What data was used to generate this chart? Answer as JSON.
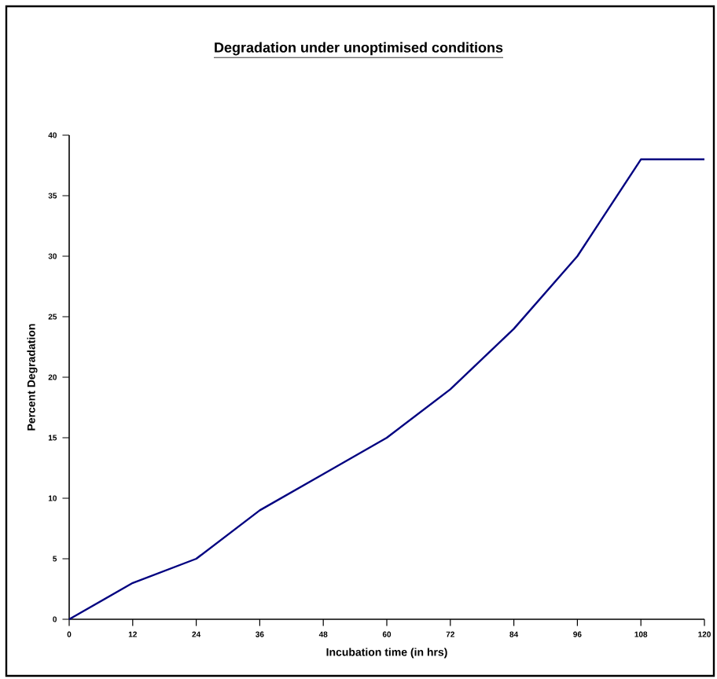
{
  "chart_data": {
    "type": "line",
    "title": "Degradation under unoptimised conditions",
    "xlabel": "Incubation time (in hrs)",
    "ylabel": "Percent Degradation",
    "x": [
      0,
      12,
      24,
      36,
      48,
      60,
      72,
      84,
      96,
      108,
      120
    ],
    "series": [
      {
        "color": "#000080",
        "values": [
          0,
          3,
          5,
          9,
          12,
          15,
          19,
          24,
          30,
          38,
          38
        ]
      }
    ],
    "xlim": [
      0,
      120
    ],
    "xticks": [
      0,
      12,
      24,
      36,
      48,
      60,
      72,
      84,
      96,
      108,
      120
    ],
    "ylim": [
      0,
      40
    ],
    "yticks": [
      0,
      5,
      10,
      15,
      20,
      25,
      30,
      35,
      40
    ],
    "grid": false,
    "marker": "none",
    "line_style": "solid"
  }
}
